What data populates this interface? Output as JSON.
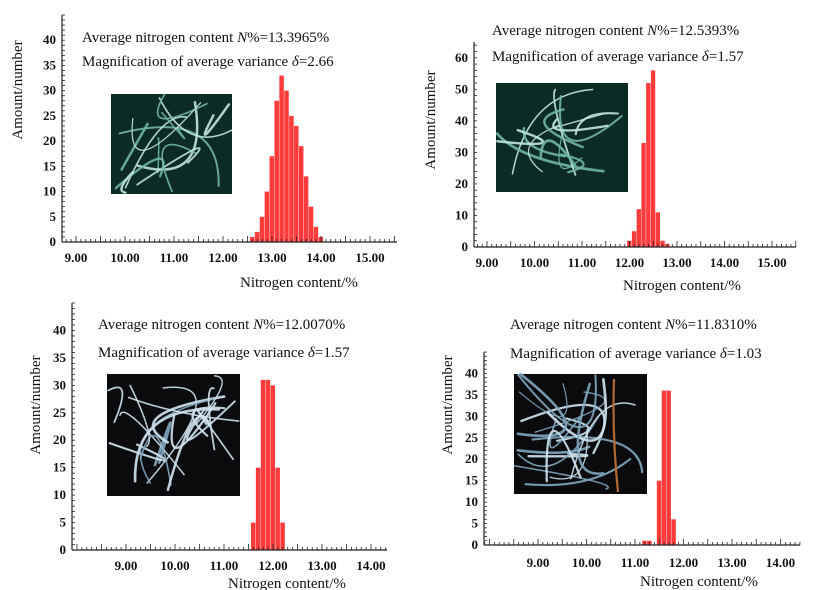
{
  "chart_data": [
    {
      "type": "bar",
      "annotation_lines": [
        {
          "prefix": "Average nitrogen content ",
          "var": "N",
          "suffix": "%=13.3965%"
        },
        {
          "prefix": "Magnification of average variance ",
          "var": "δ",
          "suffix": "=2.66"
        }
      ],
      "xlabel": "Nitrogen content/%",
      "ylabel": "Amount/number",
      "x_ticks": [
        "9.00",
        "10.00",
        "11.00",
        "12.00",
        "13.00",
        "14.00",
        "15.00"
      ],
      "xlim": [
        8.75,
        15.4
      ],
      "y_ticks": [
        0,
        5,
        10,
        15,
        20,
        25,
        30,
        35,
        40
      ],
      "ylim": [
        0,
        45
      ],
      "bar_color": "#ff3b3b",
      "bin_width": 0.1,
      "bins": [
        {
          "x": 12.6,
          "y": 1
        },
        {
          "x": 12.7,
          "y": 2
        },
        {
          "x": 12.8,
          "y": 5
        },
        {
          "x": 12.9,
          "y": 10
        },
        {
          "x": 13.0,
          "y": 17
        },
        {
          "x": 13.1,
          "y": 28
        },
        {
          "x": 13.2,
          "y": 33
        },
        {
          "x": 13.3,
          "y": 30
        },
        {
          "x": 13.4,
          "y": 25
        },
        {
          "x": 13.5,
          "y": 23
        },
        {
          "x": 13.6,
          "y": 19
        },
        {
          "x": 13.7,
          "y": 13
        },
        {
          "x": 13.8,
          "y": 7
        },
        {
          "x": 13.9,
          "y": 3
        },
        {
          "x": 14.0,
          "y": 1
        }
      ]
    },
    {
      "type": "bar",
      "annotation_lines": [
        {
          "prefix": "Average nitrogen content ",
          "var": "N",
          "suffix": "%=12.5393%"
        },
        {
          "prefix": "Magnification of average variance ",
          "var": "δ",
          "suffix": "=1.57"
        }
      ],
      "xlabel": "Nitrogen content/%",
      "ylabel": "Amount/number",
      "x_ticks": [
        "9.00",
        "10.00",
        "11.00",
        "12.00",
        "13.00",
        "14.00",
        "15.00"
      ],
      "xlim": [
        8.75,
        15.4
      ],
      "y_ticks": [
        0,
        10,
        20,
        30,
        40,
        50,
        60
      ],
      "ylim": [
        0,
        65
      ],
      "bar_color": "#ff3b3b",
      "bin_width": 0.1,
      "bins": [
        {
          "x": 12.0,
          "y": 2
        },
        {
          "x": 12.1,
          "y": 5
        },
        {
          "x": 12.2,
          "y": 12
        },
        {
          "x": 12.3,
          "y": 33
        },
        {
          "x": 12.4,
          "y": 52
        },
        {
          "x": 12.5,
          "y": 56
        },
        {
          "x": 12.6,
          "y": 11
        },
        {
          "x": 12.7,
          "y": 2
        },
        {
          "x": 12.8,
          "y": 1
        }
      ]
    },
    {
      "type": "bar",
      "annotation_lines": [
        {
          "prefix": "Average nitrogen content ",
          "var": "N",
          "suffix": "%=12.0070%"
        },
        {
          "prefix": "Magnification of average variance ",
          "var": "δ",
          "suffix": "=1.57"
        }
      ],
      "xlabel": "Nitrogen content/%",
      "ylabel": "Amount/number",
      "x_ticks": [
        "9.00",
        "10.00",
        "11.00",
        "12.00",
        "13.00",
        "14.00"
      ],
      "xlim": [
        8.35,
        14.45
      ],
      "y_ticks": [
        0,
        5,
        10,
        15,
        20,
        25,
        30,
        35,
        40
      ],
      "ylim": [
        0,
        45
      ],
      "bar_color": "#ff3b3b",
      "bin_width": 0.1,
      "bins": [
        {
          "x": 11.6,
          "y": 5
        },
        {
          "x": 11.7,
          "y": 15
        },
        {
          "x": 11.8,
          "y": 31
        },
        {
          "x": 11.9,
          "y": 31
        },
        {
          "x": 12.0,
          "y": 30
        },
        {
          "x": 12.1,
          "y": 15
        },
        {
          "x": 12.2,
          "y": 5
        }
      ]
    },
    {
      "type": "bar",
      "annotation_lines": [
        {
          "prefix": "Average nitrogen content ",
          "var": "N",
          "suffix": "%=11.8310%"
        },
        {
          "prefix": "Magnification of average variance ",
          "var": "δ",
          "suffix": "=1.03"
        }
      ],
      "xlabel": "Nitrogen content/%",
      "ylabel": "Amount/number",
      "x_ticks": [
        "9.00",
        "10.00",
        "11.00",
        "12.00",
        "13.00",
        "14.00"
      ],
      "xlim": [
        8.35,
        14.45
      ],
      "y_ticks": [
        0,
        5,
        10,
        15,
        20,
        25,
        30,
        35,
        40
      ],
      "ylim": [
        0,
        45
      ],
      "bar_color": "#ff3b3b",
      "bin_width": 0.1,
      "bins": [
        {
          "x": 11.2,
          "y": 1
        },
        {
          "x": 11.3,
          "y": 1
        },
        {
          "x": 11.5,
          "y": 15
        },
        {
          "x": 11.6,
          "y": 36
        },
        {
          "x": 11.7,
          "y": 36
        },
        {
          "x": 11.8,
          "y": 6
        }
      ]
    }
  ]
}
